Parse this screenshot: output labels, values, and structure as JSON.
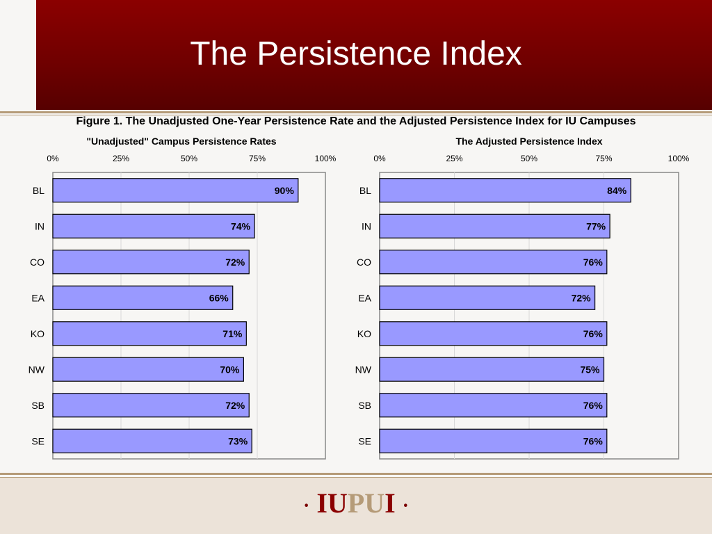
{
  "slide": {
    "title": "The Persistence Index",
    "figure_title": "Figure 1.  The Unadjusted One-Year Persistence Rate and the Adjusted Persistence Index for IU Campuses",
    "logo": {
      "dot_left": "·",
      "iu": "IU",
      "pu": "PU",
      "i": "I",
      "dot_right": "·"
    }
  },
  "colors": {
    "bar_fill": "#9999ff",
    "bar_stroke": "#000000",
    "header": "#8b0000",
    "accent": "#b59b78"
  },
  "chart_data": [
    {
      "type": "bar",
      "orientation": "horizontal",
      "title": "\"Unadjusted\" Campus Persistence Rates",
      "categories": [
        "BL",
        "IN",
        "CO",
        "EA",
        "KO",
        "NW",
        "SB",
        "SE"
      ],
      "values": [
        90,
        74,
        72,
        66,
        71,
        70,
        72,
        73
      ],
      "value_labels": [
        "90%",
        "74%",
        "72%",
        "66%",
        "71%",
        "70%",
        "72%",
        "73%"
      ],
      "xlim": [
        0,
        100
      ],
      "xticks": [
        "0%",
        "25%",
        "50%",
        "75%",
        "100%"
      ],
      "grid": true
    },
    {
      "type": "bar",
      "orientation": "horizontal",
      "title": "The Adjusted Persistence Index",
      "categories": [
        "BL",
        "IN",
        "CO",
        "EA",
        "KO",
        "NW",
        "SB",
        "SE"
      ],
      "values": [
        84,
        77,
        76,
        72,
        76,
        75,
        76,
        76
      ],
      "value_labels": [
        "84%",
        "77%",
        "76%",
        "72%",
        "76%",
        "75%",
        "76%",
        "76%"
      ],
      "xlim": [
        0,
        100
      ],
      "xticks": [
        "0%",
        "25%",
        "50%",
        "75%",
        "100%"
      ],
      "grid": true
    }
  ]
}
